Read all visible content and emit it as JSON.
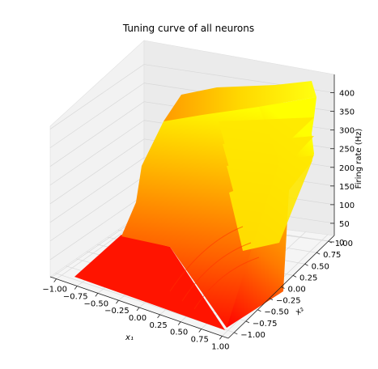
{
  "chart_data": {
    "type": "surface",
    "title": "Tuning curve of all neurons",
    "xlabel": "x₁",
    "ylabel": "x₂",
    "zlabel": "Firing rate (Hz)",
    "xlim": [
      -1.0,
      1.0
    ],
    "ylim": [
      -1.0,
      1.0
    ],
    "zlim": [
      0,
      440
    ],
    "x_ticks": [
      "−1.00",
      "−0.75",
      "−0.50",
      "−0.25",
      "0.00",
      "0.25",
      "0.50",
      "0.75",
      "1.00"
    ],
    "y_ticks": [
      "−1.00",
      "−0.75",
      "−0.50",
      "−0.25",
      "0.00",
      "0.25",
      "0.50",
      "0.75",
      "1.00"
    ],
    "z_ticks": [
      "0",
      "50",
      "100",
      "150",
      "200",
      "250",
      "300",
      "350",
      "400"
    ],
    "grid": true,
    "colormap": "autumn",
    "colors": {
      "low": "#ff0000",
      "high": "#ffff00",
      "pane": "#f2f2f2",
      "grid": "#d8d8d8"
    },
    "surface_samples": [
      {
        "x1": -1.0,
        "x2": 1.0,
        "rate": 0
      },
      {
        "x1": -0.25,
        "x2": 1.0,
        "rate": 0
      },
      {
        "x1": 0.0,
        "x2": 1.0,
        "rate": 320
      },
      {
        "x1": 0.5,
        "x2": 1.0,
        "rate": 400
      },
      {
        "x1": 1.0,
        "x2": 1.0,
        "rate": 430
      },
      {
        "x1": 1.0,
        "x2": 0.5,
        "rate": 360
      },
      {
        "x1": 1.0,
        "x2": 0.0,
        "rate": 280
      },
      {
        "x1": 1.0,
        "x2": -1.0,
        "rate": 0
      },
      {
        "x1": -1.0,
        "x2": -1.0,
        "rate": 0
      }
    ]
  }
}
